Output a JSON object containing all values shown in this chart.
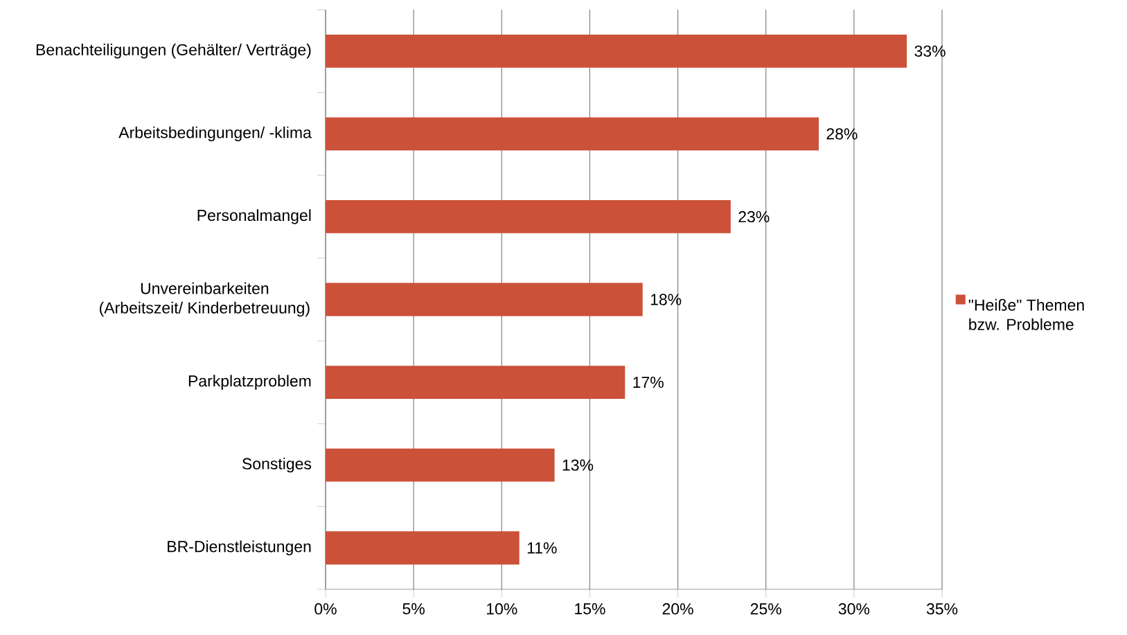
{
  "chart_data": {
    "type": "bar",
    "orientation": "horizontal",
    "categories": [
      "Benachteiligungen (Gehälter/ Verträge)",
      "Arbeitsbedingungen/ -klima",
      "Personalmangel",
      "Unvereinbarkeiten (Arbeitszeit/ Kinderbetreuung)",
      "Parkplatzproblem",
      "Sonstiges",
      "BR-Dienstleistungen"
    ],
    "series": [
      {
        "name": "\"Heiße\" Themen bzw. Probleme",
        "color": "#cb5139",
        "values": [
          33,
          28,
          23,
          18,
          17,
          13,
          11
        ],
        "value_labels": [
          "33%",
          "28%",
          "23%",
          "18%",
          "17%",
          "13%",
          "11%"
        ]
      }
    ],
    "xlim": [
      0,
      35
    ],
    "xticks": [
      {
        "value": 0,
        "label": "0%"
      },
      {
        "value": 5,
        "label": "5%"
      },
      {
        "value": 10,
        "label": "10%"
      },
      {
        "value": 15,
        "label": "15%"
      },
      {
        "value": 20,
        "label": "20%"
      },
      {
        "value": 25,
        "label": "25%"
      },
      {
        "value": 30,
        "label": "30%"
      },
      {
        "value": 35,
        "label": "35%"
      }
    ],
    "grid": "x",
    "legend": "right"
  }
}
